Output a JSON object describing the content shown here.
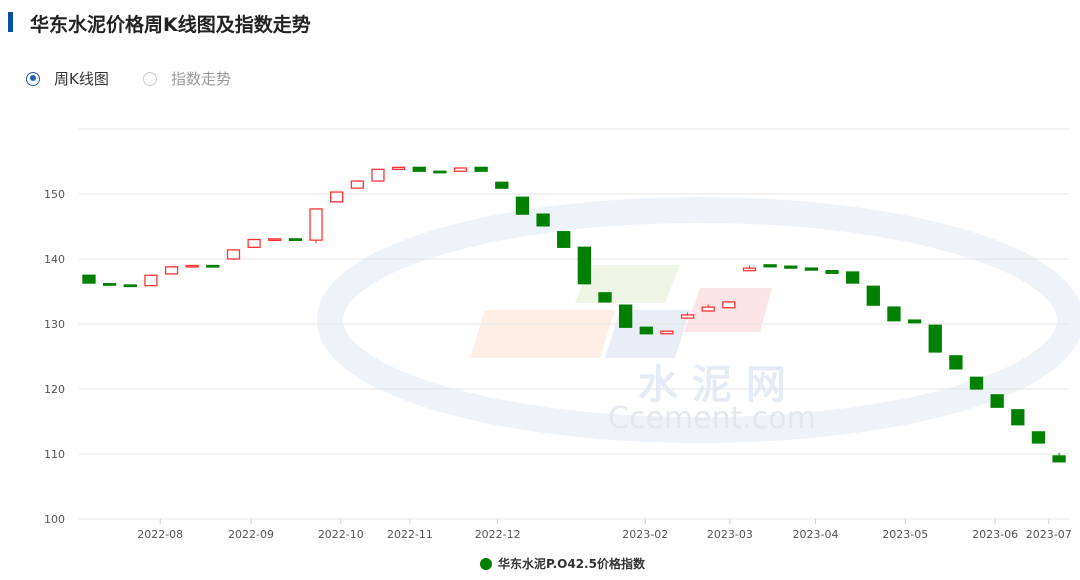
{
  "header": {
    "title": "华东水泥价格周K线图及指数走势"
  },
  "tabs": [
    {
      "label": "周K线图",
      "selected": true
    },
    {
      "label": "指数走势",
      "selected": false
    }
  ],
  "watermark": {
    "cn": "水 泥 网",
    "en": "Ccement.com"
  },
  "chart_data": {
    "type": "candlestick",
    "title": "",
    "ylim": [
      100,
      160
    ],
    "yticks": [
      100,
      110,
      120,
      130,
      140,
      150
    ],
    "grid": true,
    "legend_position": "bottom",
    "colors": {
      "up": "#ff3333",
      "down": "#008000"
    },
    "xticks": [
      {
        "label": "2022-08",
        "index": 3.45
      },
      {
        "label": "2022-09",
        "index": 7.85
      },
      {
        "label": "2022-10",
        "index": 12.2
      },
      {
        "label": "2022-11",
        "index": 15.55
      },
      {
        "label": "2022-12",
        "index": 19.8
      },
      {
        "label": "2023-02",
        "index": 26.95
      },
      {
        "label": "2023-03",
        "index": 31.05
      },
      {
        "label": "2023-04",
        "index": 35.2
      },
      {
        "label": "2023-05",
        "index": 39.55
      },
      {
        "label": "2023-06",
        "index": 43.9
      },
      {
        "label": "2023-07",
        "index": 46.5
      }
    ],
    "series": [
      {
        "name": "华东水泥P.O42.5价格指数",
        "ohlc": [
          [
            137.5,
            137.5,
            136.3,
            136.3
          ],
          [
            136.2,
            136.2,
            136.1,
            136.1
          ],
          [
            136.0,
            136.0,
            135.9,
            135.9
          ],
          [
            135.9,
            137.5,
            135.9,
            137.5
          ],
          [
            137.7,
            138.8,
            137.7,
            138.8
          ],
          [
            138.9,
            139.0,
            138.9,
            139.0
          ],
          [
            139.0,
            139.0,
            138.9,
            138.9
          ],
          [
            140.0,
            141.4,
            140.0,
            141.4
          ],
          [
            141.8,
            143.0,
            141.8,
            143.0
          ],
          [
            142.9,
            143.1,
            142.9,
            143.1
          ],
          [
            143.1,
            143.1,
            142.9,
            142.9
          ],
          [
            142.9,
            147.7,
            142.4,
            147.7
          ],
          [
            148.8,
            150.3,
            148.8,
            150.3
          ],
          [
            150.9,
            152.0,
            150.9,
            152.0
          ],
          [
            152.0,
            153.8,
            152.0,
            153.8
          ],
          [
            153.8,
            154.1,
            153.8,
            154.1
          ],
          [
            154.1,
            154.1,
            153.5,
            153.5
          ],
          [
            153.5,
            153.5,
            153.4,
            153.4
          ],
          [
            153.5,
            154.0,
            153.5,
            154.0
          ],
          [
            154.1,
            154.1,
            153.5,
            153.5
          ],
          [
            151.8,
            151.8,
            150.9,
            150.9
          ],
          [
            149.5,
            149.5,
            146.9,
            146.9
          ],
          [
            146.9,
            146.9,
            145.1,
            145.1
          ],
          [
            144.2,
            144.2,
            141.8,
            141.8
          ],
          [
            141.8,
            141.8,
            136.2,
            136.2
          ],
          [
            134.8,
            134.8,
            133.4,
            133.4
          ],
          [
            132.9,
            132.9,
            129.5,
            129.5
          ],
          [
            129.5,
            129.5,
            128.5,
            128.5
          ],
          [
            128.5,
            128.9,
            128.5,
            128.9
          ],
          [
            130.9,
            131.8,
            130.9,
            131.4
          ],
          [
            132.0,
            133.0,
            132.0,
            132.6
          ],
          [
            132.5,
            133.4,
            132.5,
            133.4
          ],
          [
            138.2,
            139.0,
            138.2,
            138.6
          ],
          [
            139.1,
            139.1,
            138.8,
            138.8
          ],
          [
            138.9,
            138.9,
            138.6,
            138.6
          ],
          [
            138.6,
            138.6,
            138.3,
            138.3
          ],
          [
            138.2,
            138.2,
            137.8,
            137.8
          ],
          [
            138.0,
            138.0,
            136.3,
            136.3
          ],
          [
            135.8,
            135.8,
            132.9,
            132.9
          ],
          [
            132.6,
            132.6,
            130.5,
            130.5
          ],
          [
            130.6,
            130.6,
            130.2,
            130.2
          ],
          [
            129.8,
            129.8,
            125.7,
            125.7
          ],
          [
            125.1,
            125.1,
            123.1,
            123.1
          ],
          [
            121.8,
            121.8,
            120.0,
            120.0
          ],
          [
            119.1,
            119.1,
            117.2,
            117.2
          ],
          [
            116.8,
            116.8,
            114.5,
            114.5
          ],
          [
            113.4,
            113.4,
            111.7,
            111.7
          ],
          [
            109.7,
            110.2,
            108.8,
            108.8
          ]
        ]
      }
    ]
  }
}
